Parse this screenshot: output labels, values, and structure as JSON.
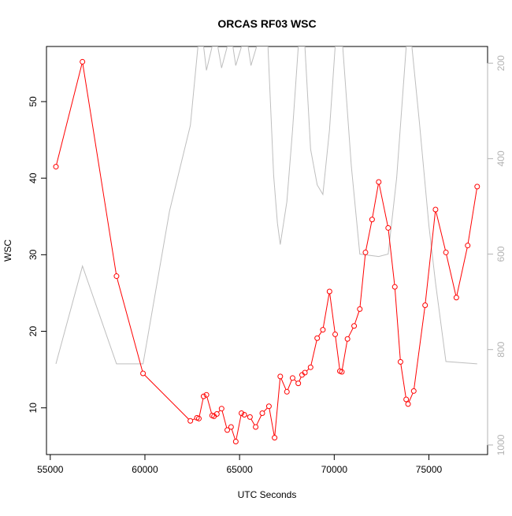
{
  "chart_data": {
    "type": "line",
    "title": "ORCAS RF03 WSC",
    "xlabel": "UTC Seconds",
    "ylabel": "WSC",
    "xlim": [
      54800,
      78100
    ],
    "ylim": [
      3.9,
      57.2
    ],
    "x_ticks": [
      55000,
      60000,
      65000,
      70000,
      75000
    ],
    "y_ticks": [
      10,
      20,
      30,
      40,
      50
    ],
    "grid": false,
    "series": [
      {
        "color": "#ff0000",
        "marker": "open-circle",
        "axis": "left",
        "points": [
          [
            55300,
            41.5
          ],
          [
            56700,
            55.2
          ],
          [
            58500,
            27.2
          ],
          [
            59900,
            14.5
          ],
          [
            62400,
            8.3
          ],
          [
            62750,
            8.7
          ],
          [
            62850,
            8.6
          ],
          [
            63100,
            11.5
          ],
          [
            63250,
            11.7
          ],
          [
            63550,
            9.0
          ],
          [
            63650,
            8.9
          ],
          [
            63800,
            9.2
          ],
          [
            64050,
            9.9
          ],
          [
            64350,
            7.1
          ],
          [
            64550,
            7.5
          ],
          [
            64800,
            5.6
          ],
          [
            65100,
            9.3
          ],
          [
            65250,
            9.1
          ],
          [
            65550,
            8.8
          ],
          [
            65850,
            7.5
          ],
          [
            66200,
            9.3
          ],
          [
            66550,
            10.2
          ],
          [
            66850,
            6.1
          ],
          [
            67150,
            14.1
          ],
          [
            67500,
            12.1
          ],
          [
            67800,
            13.9
          ],
          [
            68100,
            13.2
          ],
          [
            68300,
            14.3
          ],
          [
            68450,
            14.6
          ],
          [
            68750,
            15.3
          ],
          [
            69100,
            19.1
          ],
          [
            69400,
            20.2
          ],
          [
            69750,
            25.2
          ],
          [
            70050,
            19.6
          ],
          [
            70300,
            14.8
          ],
          [
            70400,
            14.7
          ],
          [
            70700,
            19.0
          ],
          [
            71050,
            20.7
          ],
          [
            71350,
            22.9
          ],
          [
            71650,
            30.3
          ],
          [
            72000,
            34.6
          ],
          [
            72350,
            39.5
          ],
          [
            72850,
            33.5
          ],
          [
            73200,
            25.8
          ],
          [
            73500,
            16.0
          ],
          [
            73800,
            11.1
          ],
          [
            73900,
            10.5
          ],
          [
            74200,
            12.2
          ],
          [
            74800,
            23.4
          ],
          [
            75350,
            35.9
          ],
          [
            75900,
            30.3
          ],
          [
            76450,
            24.4
          ],
          [
            77050,
            31.2
          ],
          [
            77550,
            38.9
          ]
        ]
      },
      {
        "color": "#bebebe",
        "marker": "none",
        "axis": "right",
        "points": [
          [
            55300,
            830
          ],
          [
            56700,
            625
          ],
          [
            58500,
            830
          ],
          [
            59900,
            830
          ],
          [
            61300,
            510
          ],
          [
            62400,
            330
          ],
          [
            62800,
            165
          ],
          [
            63100,
            165
          ],
          [
            63250,
            215
          ],
          [
            63550,
            165
          ],
          [
            63850,
            165
          ],
          [
            64050,
            210
          ],
          [
            64350,
            165
          ],
          [
            64650,
            165
          ],
          [
            64800,
            205
          ],
          [
            65100,
            165
          ],
          [
            65450,
            165
          ],
          [
            65600,
            205
          ],
          [
            65900,
            165
          ],
          [
            66500,
            165
          ],
          [
            66800,
            435
          ],
          [
            67000,
            535
          ],
          [
            67150,
            580
          ],
          [
            67500,
            490
          ],
          [
            67800,
            340
          ],
          [
            68100,
            165
          ],
          [
            68450,
            165
          ],
          [
            68750,
            380
          ],
          [
            69100,
            455
          ],
          [
            69400,
            475
          ],
          [
            69750,
            340
          ],
          [
            70050,
            165
          ],
          [
            70450,
            165
          ],
          [
            70900,
            415
          ],
          [
            71350,
            600
          ],
          [
            72350,
            605
          ],
          [
            72850,
            600
          ],
          [
            73300,
            440
          ],
          [
            73800,
            165
          ],
          [
            74100,
            165
          ],
          [
            74500,
            325
          ],
          [
            75000,
            540
          ],
          [
            75350,
            660
          ],
          [
            75900,
            825
          ],
          [
            77550,
            830
          ]
        ]
      }
    ],
    "right_axis": {
      "label": "",
      "reversed": true,
      "ylim": [
        1020,
        165
      ],
      "ticks": [
        200,
        400,
        600,
        800,
        1000
      ],
      "color": "#b3b3b3"
    },
    "tick_labels": {
      "x": [
        "55000",
        "60000",
        "65000",
        "70000",
        "75000"
      ],
      "y": [
        "10",
        "20",
        "30",
        "40",
        "50"
      ],
      "right": [
        "200",
        "400",
        "600",
        "800",
        "1000"
      ]
    }
  }
}
